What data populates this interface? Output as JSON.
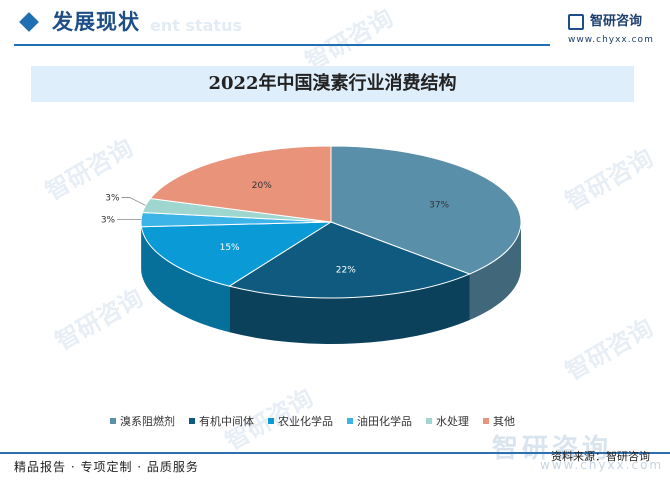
{
  "header": {
    "section_title": "发展现状",
    "section_subtitle": "ent status",
    "logo_name": "智研咨询",
    "logo_url": "www.chyxx.com"
  },
  "chart_data": {
    "type": "pie",
    "title": "2022年中国溴素行业消费结构",
    "categories": [
      "溴系阻燃剂",
      "有机中间体",
      "农业化学品",
      "油田化学品",
      "水处理",
      "其他"
    ],
    "values": [
      37,
      22,
      15,
      3,
      3,
      20
    ],
    "value_labels": [
      "37%",
      "22%",
      "15%",
      "3%",
      "3%",
      "20%"
    ],
    "colors": [
      "#5a8faa",
      "#0f5a7e",
      "#0a9bd6",
      "#3cb4e8",
      "#9fd6cf",
      "#e8937a"
    ],
    "legend_position": "bottom"
  },
  "watermarks": {
    "brand": "智研咨询"
  },
  "footer": {
    "left_text": "精品报告 · 专项定制 · 品质服务",
    "source": "资料来源：智研咨询",
    "watermark_brand": "智研咨询",
    "watermark_url": "www.chyxx.com"
  }
}
